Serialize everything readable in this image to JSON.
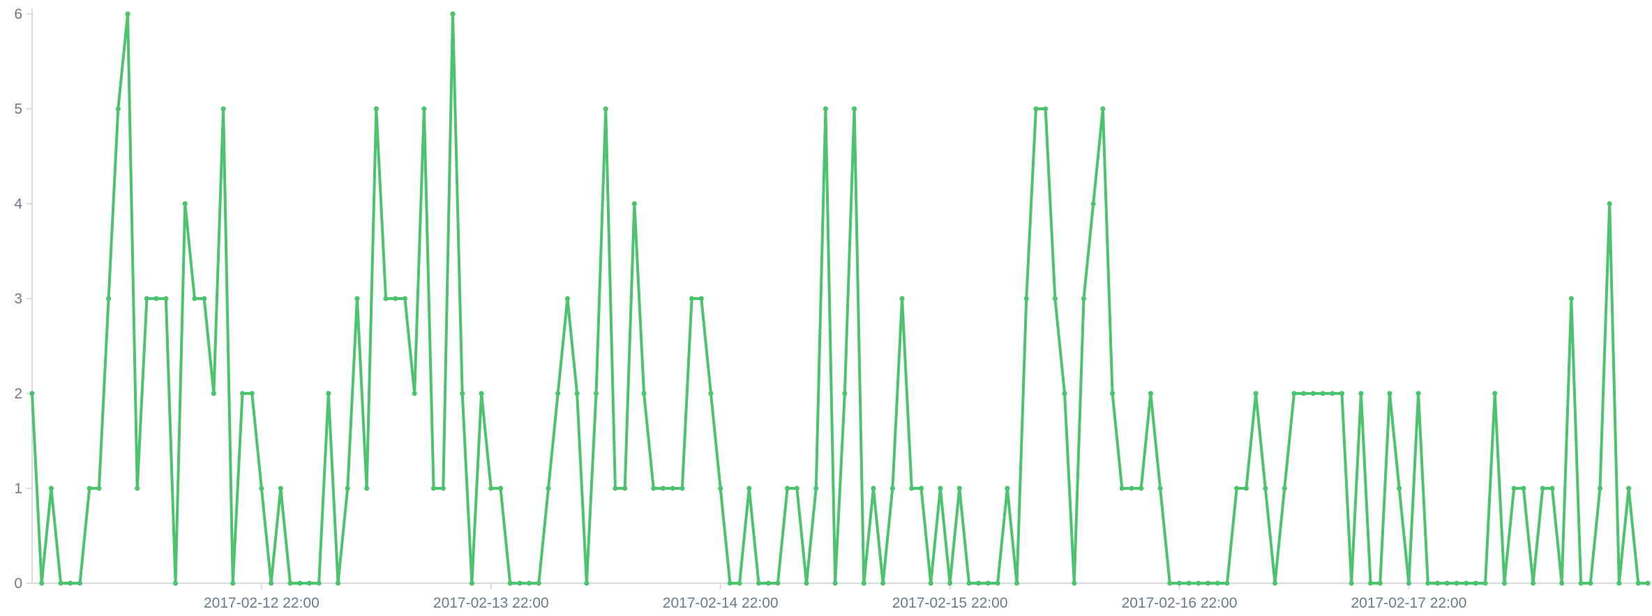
{
  "chart_data": {
    "type": "line",
    "title": "",
    "xlabel": "",
    "ylabel": "",
    "ylim": [
      0,
      6
    ],
    "grid": false,
    "legend": "none",
    "color": "#4cc36d",
    "y_ticks": [
      "0",
      "1",
      "2",
      "3",
      "4",
      "5",
      "6"
    ],
    "x_ticks": [
      {
        "label": "2017-02-12 22:00",
        "x": 24
      },
      {
        "label": "2017-02-13 22:00",
        "x": 48
      },
      {
        "label": "2017-02-14 22:00",
        "x": 72
      },
      {
        "label": "2017-02-15 22:00",
        "x": 96
      },
      {
        "label": "2017-02-16 22:00",
        "x": 120
      },
      {
        "label": "2017-02-17 22:00",
        "x": 144
      }
    ],
    "x_domain": [
      0,
      169
    ],
    "values": [
      2,
      0,
      1,
      0,
      0,
      0,
      1,
      1,
      3,
      5,
      6,
      1,
      3,
      3,
      3,
      0,
      4,
      3,
      3,
      2,
      5,
      0,
      2,
      2,
      1,
      0,
      1,
      0,
      0,
      0,
      0,
      2,
      0,
      1,
      3,
      1,
      5,
      3,
      3,
      3,
      2,
      5,
      1,
      1,
      6,
      2,
      0,
      2,
      1,
      1,
      0,
      0,
      0,
      0,
      1,
      2,
      3,
      2,
      0,
      2,
      5,
      1,
      1,
      4,
      2,
      1,
      1,
      1,
      1,
      3,
      3,
      2,
      1,
      0,
      0,
      1,
      0,
      0,
      0,
      1,
      1,
      0,
      1,
      5,
      0,
      2,
      5,
      0,
      1,
      0,
      1,
      3,
      1,
      1,
      0,
      1,
      0,
      1,
      0,
      0,
      0,
      0,
      1,
      0,
      3,
      5,
      5,
      3,
      2,
      0,
      3,
      4,
      5,
      2,
      1,
      1,
      1,
      2,
      1,
      0,
      0,
      0,
      0,
      0,
      0,
      0,
      1,
      1,
      2,
      1,
      0,
      1,
      2,
      2,
      2,
      2,
      2,
      2,
      0,
      2,
      0,
      0,
      2,
      1,
      0,
      2,
      0,
      0,
      0,
      0,
      0,
      0,
      0,
      2,
      0,
      1,
      1,
      0,
      1,
      1,
      0,
      3,
      0,
      0,
      1,
      4,
      0,
      1,
      0,
      0
    ]
  }
}
